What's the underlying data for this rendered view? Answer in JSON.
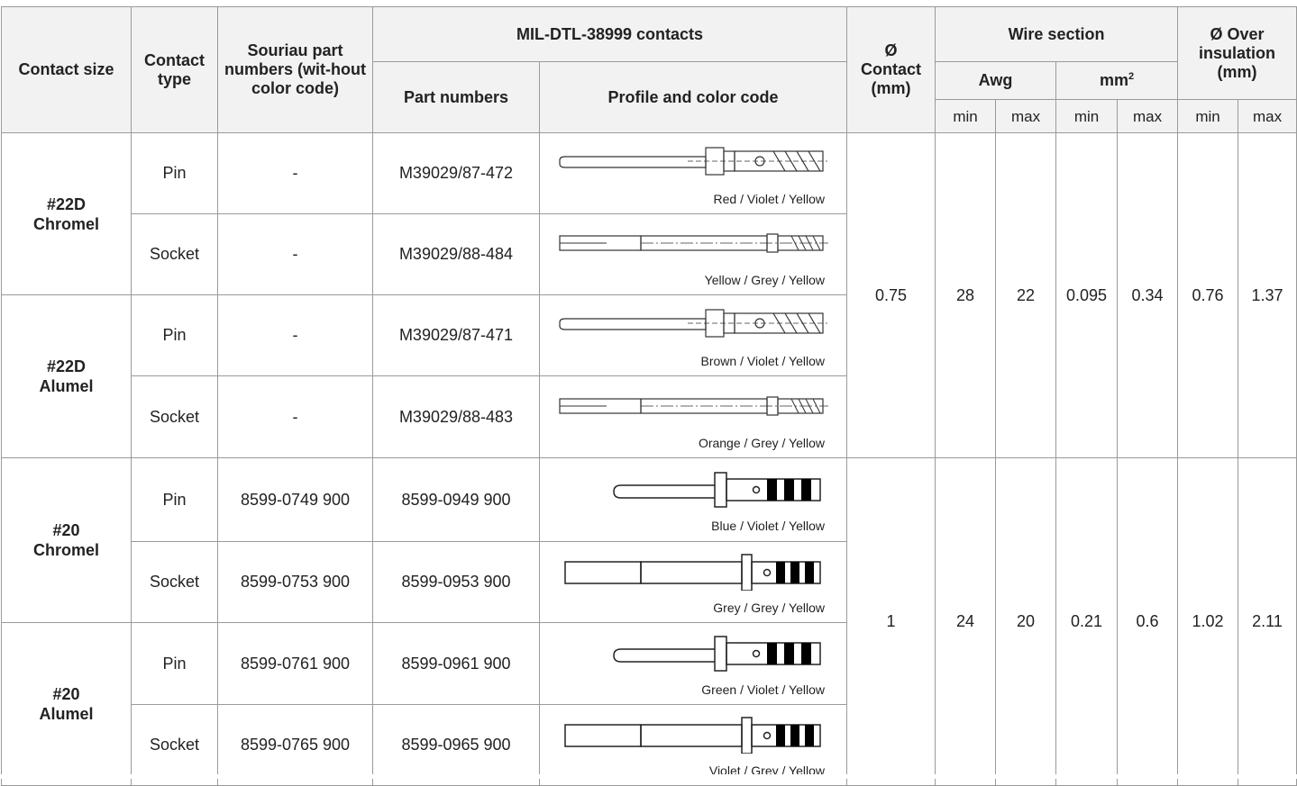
{
  "header": {
    "contact_size": "Contact size",
    "contact_type": "Contact type",
    "souriau": "Souriau part numbers (wit-hout color code)",
    "mil": "MIL-DTL-38999 contacts",
    "part_numbers": "Part numbers",
    "profile": "Profile and color code",
    "diam_contact_sym": "Ø",
    "diam_contact": "Contact (mm)",
    "wire_section": "Wire section",
    "awg": "Awg",
    "mm": "mm",
    "mm_sup": "2",
    "over_insulation": "Ø Over insulation (mm)",
    "min": "min",
    "max": "max"
  },
  "rows": [
    {
      "type": "Pin",
      "souriau": "-",
      "part": "M39029/87-472",
      "color": "Red / Violet / Yellow",
      "icon": "pin-22d-icon"
    },
    {
      "type": "Socket",
      "souriau": "-",
      "part": "M39029/88-484",
      "color": "Yellow / Grey / Yellow",
      "icon": "socket-22d-icon"
    },
    {
      "type": "Pin",
      "souriau": "-",
      "part": "M39029/87-471",
      "color": "Brown / Violet / Yellow",
      "icon": "pin-22d-icon"
    },
    {
      "type": "Socket",
      "souriau": "-",
      "part": "M39029/88-483",
      "color": "Orange / Grey / Yellow",
      "icon": "socket-22d-icon"
    },
    {
      "type": "Pin",
      "souriau": "8599-0749 900",
      "part": "8599-0949 900",
      "color": "Blue / Violet / Yellow",
      "icon": "pin-20-icon"
    },
    {
      "type": "Socket",
      "souriau": "8599-0753 900",
      "part": "8599-0953 900",
      "color": "Grey / Grey / Yellow",
      "icon": "socket-20-icon"
    },
    {
      "type": "Pin",
      "souriau": "8599-0761 900",
      "part": "8599-0961 900",
      "color": "Green / Violet / Yellow",
      "icon": "pin-20-icon"
    },
    {
      "type": "Socket",
      "souriau": "8599-0765 900",
      "part": "8599-0965 900",
      "color": "Violet / Grey / Yellow",
      "icon": "socket-20-icon"
    }
  ],
  "sizes": [
    {
      "line1": "#22D",
      "line2": "Chromel"
    },
    {
      "line1": "#22D",
      "line2": "Alumel"
    },
    {
      "line1": "#20",
      "line2": "Chromel"
    },
    {
      "line1": "#20",
      "line2": "Alumel"
    }
  ],
  "groups": [
    {
      "diameter": "0.75",
      "awg_min": "28",
      "awg_max": "22",
      "mm2_min": "0.095",
      "mm2_max": "0.34",
      "ins_min": "0.76",
      "ins_max": "1.37"
    },
    {
      "diameter": "1",
      "awg_min": "24",
      "awg_max": "20",
      "mm2_min": "0.21",
      "mm2_max": "0.6",
      "ins_min": "1.02",
      "ins_max": "2.11"
    }
  ]
}
